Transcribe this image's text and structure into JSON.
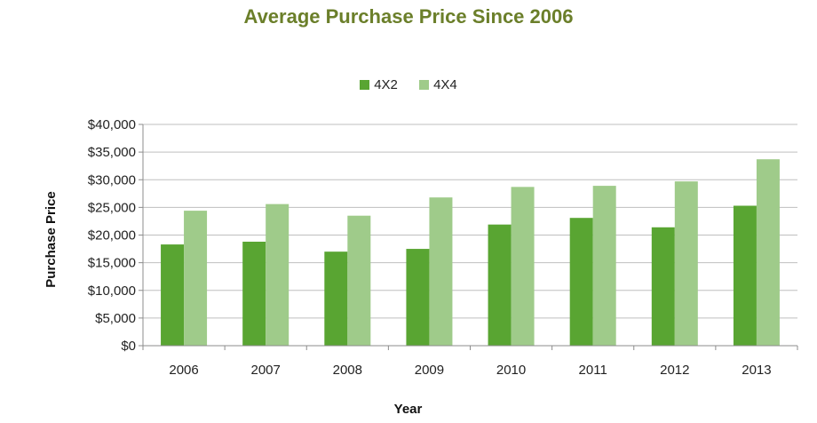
{
  "chart_data": {
    "type": "bar",
    "title": "Average Purchase Price Since 2006",
    "xlabel": "Year",
    "ylabel": "Purchase Price",
    "categories": [
      "2006",
      "2007",
      "2008",
      "2009",
      "2010",
      "2011",
      "2012",
      "2013"
    ],
    "series": [
      {
        "name": "4X2",
        "color": "#59a532",
        "values": [
          18300,
          18800,
          17000,
          17500,
          21900,
          23100,
          21400,
          25300
        ]
      },
      {
        "name": "4X4",
        "color": "#9fcb8a",
        "values": [
          24400,
          25600,
          23500,
          26800,
          28700,
          28900,
          29700,
          33700
        ]
      }
    ],
    "ylim": [
      0,
      40000
    ],
    "yticks": [
      0,
      5000,
      10000,
      15000,
      20000,
      25000,
      30000,
      35000,
      40000
    ],
    "ytick_labels": [
      "$0",
      "$5,000",
      "$10,000",
      "$15,000",
      "$20,000",
      "$25,000",
      "$30,000",
      "$35,000",
      "$40,000"
    ],
    "grid": true,
    "legend_position": "top-center",
    "title_color": "#6b7f2a"
  }
}
